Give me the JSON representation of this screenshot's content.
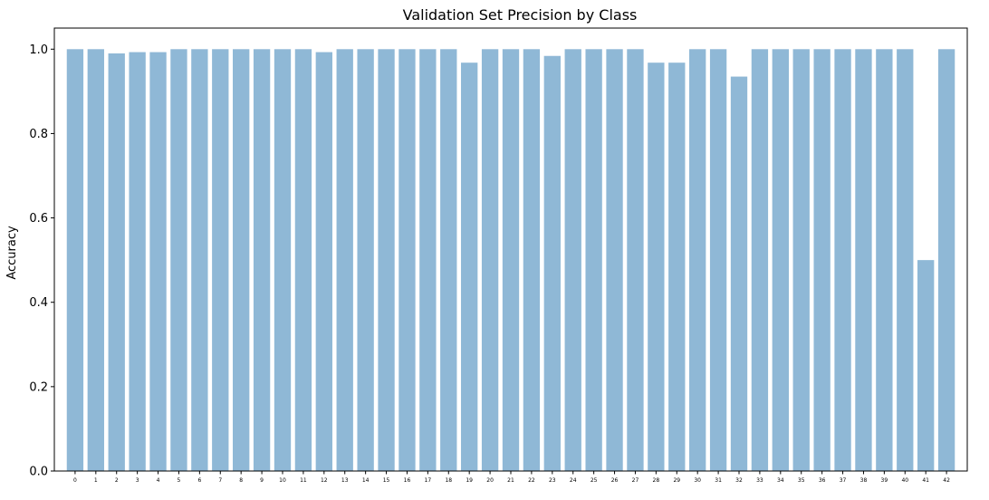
{
  "chart_data": {
    "type": "bar",
    "title": "Validation Set Precision by Class",
    "xlabel": "",
    "ylabel": "Accuracy",
    "ylim": [
      0.0,
      1.05
    ],
    "yticks": [
      "0.0",
      "0.2",
      "0.4",
      "0.6",
      "0.8",
      "1.0"
    ],
    "grid": false,
    "bar_color": "#8fb8d6",
    "categories": [
      "0",
      "1",
      "2",
      "3",
      "4",
      "5",
      "6",
      "7",
      "8",
      "9",
      "10",
      "11",
      "12",
      "13",
      "14",
      "15",
      "16",
      "17",
      "18",
      "19",
      "20",
      "21",
      "22",
      "23",
      "24",
      "25",
      "26",
      "27",
      "28",
      "29",
      "30",
      "31",
      "32",
      "33",
      "34",
      "35",
      "36",
      "37",
      "38",
      "39",
      "40",
      "41",
      "42"
    ],
    "values": [
      1.0,
      1.0,
      0.99,
      0.993,
      0.993,
      1.0,
      1.0,
      1.0,
      1.0,
      1.0,
      1.0,
      1.0,
      0.993,
      1.0,
      1.0,
      1.0,
      1.0,
      1.0,
      1.0,
      0.968,
      1.0,
      1.0,
      1.0,
      0.984,
      1.0,
      1.0,
      1.0,
      1.0,
      0.968,
      0.968,
      1.0,
      1.0,
      0.935,
      1.0,
      1.0,
      1.0,
      1.0,
      1.0,
      1.0,
      1.0,
      1.0,
      0.5,
      1.0
    ]
  }
}
